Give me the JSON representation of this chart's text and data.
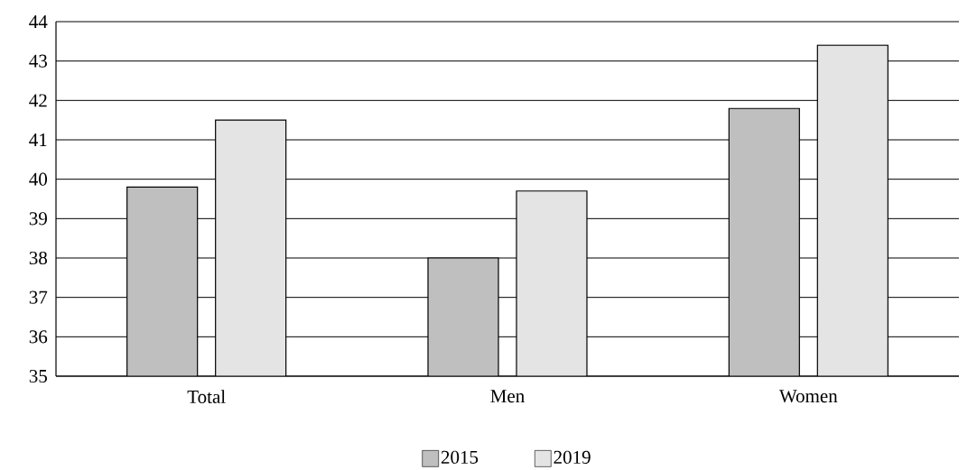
{
  "chart_data": {
    "type": "bar",
    "categories": [
      "Total",
      "Men",
      "Women"
    ],
    "series": [
      {
        "name": "2015",
        "color": "#bfbfbf",
        "values": [
          39.8,
          38.0,
          41.8
        ]
      },
      {
        "name": "2019",
        "color": "#e4e4e4",
        "values": [
          41.5,
          39.7,
          43.4
        ]
      }
    ],
    "ylim": [
      35,
      44
    ],
    "yticks": [
      35,
      36,
      37,
      38,
      39,
      40,
      41,
      42,
      43,
      44
    ],
    "grid": "y",
    "legend": "bottom"
  }
}
